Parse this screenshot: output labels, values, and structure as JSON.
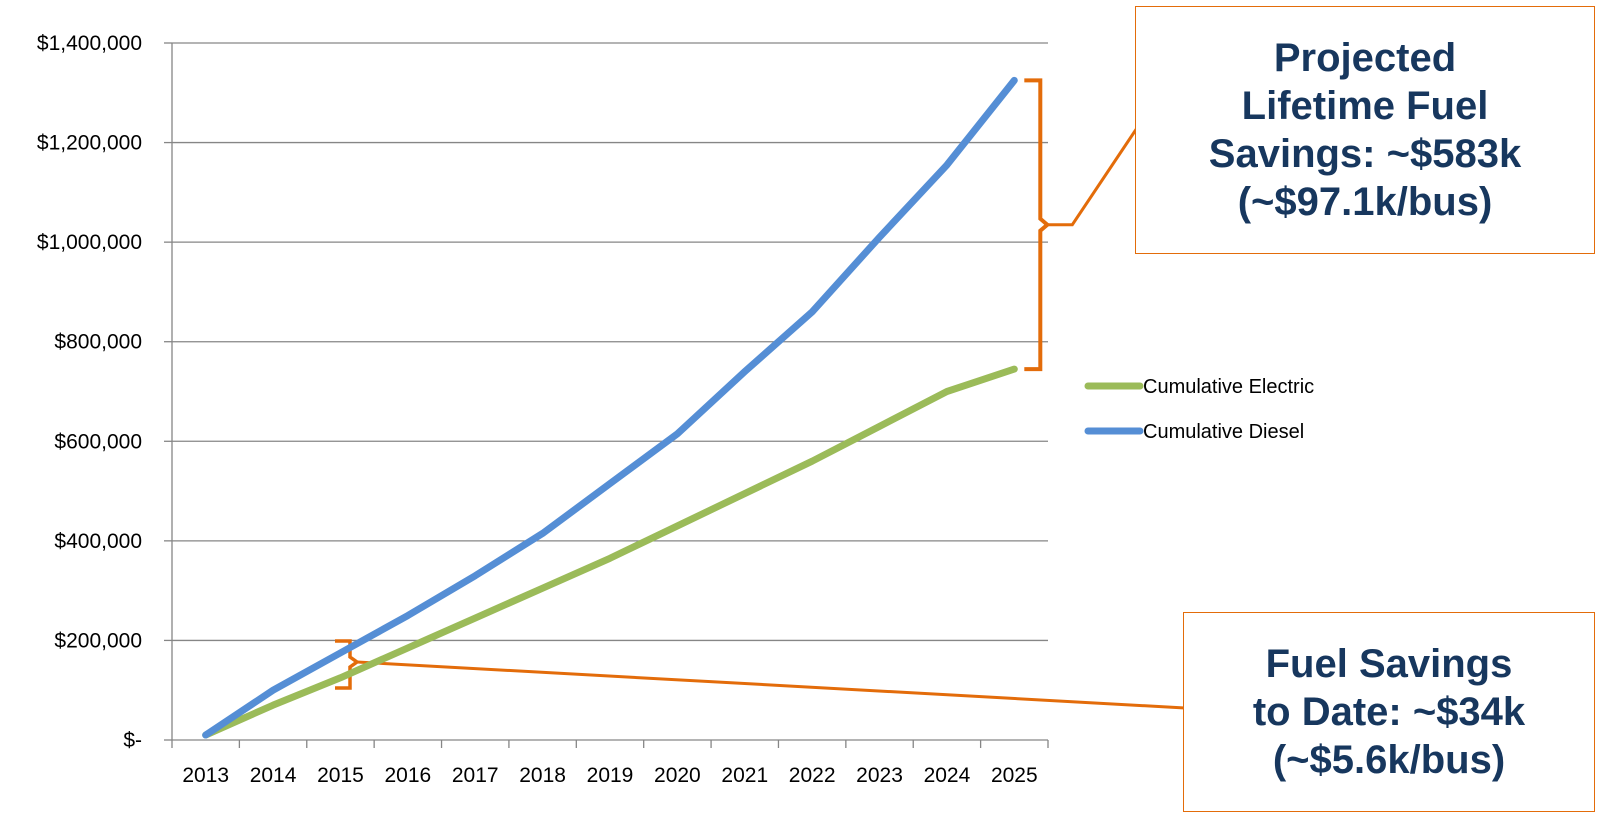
{
  "chart_data": {
    "type": "line",
    "x": [
      "2013",
      "2014",
      "2015",
      "2016",
      "2017",
      "2018",
      "2019",
      "2020",
      "2021",
      "2022",
      "2023",
      "2024",
      "2025"
    ],
    "yticks": [
      "$-",
      "$200,000",
      "$400,000",
      "$600,000",
      "$800,000",
      "$1,000,000",
      "$1,200,000",
      "$1,400,000"
    ],
    "ylim": [
      0,
      1400000
    ],
    "grid": true,
    "legend_position": "right",
    "series": [
      {
        "name": "Cumulative Electric",
        "color": "#9bbb59",
        "values": [
          10000,
          70000,
          125000,
          185000,
          245000,
          305000,
          365000,
          430000,
          495000,
          560000,
          630000,
          700000,
          745000
        ]
      },
      {
        "name": "Cumulative Diesel",
        "color": "#558ed5",
        "values": [
          10000,
          100000,
          175000,
          250000,
          330000,
          415000,
          515000,
          615000,
          740000,
          860000,
          1010000,
          1155000,
          1325000
        ]
      }
    ]
  },
  "annotations": {
    "lifetime": {
      "lines": [
        "Projected",
        "Lifetime Fuel",
        "Savings: ~$583k",
        "(~$97.1k/bus)"
      ],
      "color": "#e36c0a"
    },
    "to_date": {
      "lines": [
        "Fuel Savings",
        "to Date: ~$34k",
        "(~$5.6k/bus)"
      ],
      "color": "#e36c0a"
    }
  }
}
